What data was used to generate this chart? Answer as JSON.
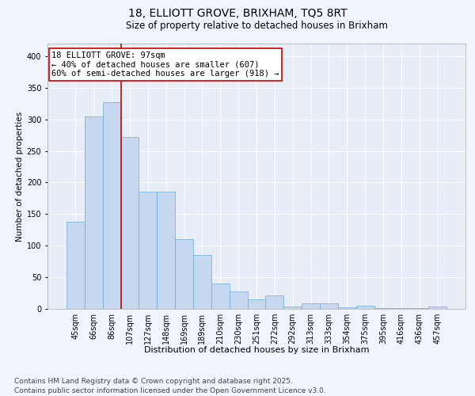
{
  "title1": "18, ELLIOTT GROVE, BRIXHAM, TQ5 8RT",
  "title2": "Size of property relative to detached houses in Brixham",
  "xlabel": "Distribution of detached houses by size in Brixham",
  "ylabel": "Number of detached properties",
  "categories": [
    "45sqm",
    "66sqm",
    "86sqm",
    "107sqm",
    "127sqm",
    "148sqm",
    "169sqm",
    "189sqm",
    "210sqm",
    "230sqm",
    "251sqm",
    "272sqm",
    "292sqm",
    "313sqm",
    "333sqm",
    "354sqm",
    "375sqm",
    "395sqm",
    "416sqm",
    "436sqm",
    "457sqm"
  ],
  "values": [
    138,
    305,
    327,
    272,
    186,
    186,
    110,
    85,
    40,
    27,
    15,
    21,
    4,
    9,
    9,
    3,
    5,
    1,
    1,
    1,
    4
  ],
  "bar_color": "#c5d8f0",
  "bar_edge_color": "#6aaad4",
  "vline_x": 2.5,
  "vline_color": "#cc0000",
  "annotation_text": "18 ELLIOTT GROVE: 97sqm\n← 40% of detached houses are smaller (607)\n60% of semi-detached houses are larger (918) →",
  "annotation_box_color": "#ffffff",
  "annotation_box_edge": "#cc0000",
  "ylim": [
    0,
    420
  ],
  "yticks": [
    0,
    50,
    100,
    150,
    200,
    250,
    300,
    350,
    400
  ],
  "background_color": "#e8eef8",
  "grid_color": "#ffffff",
  "fig_background": "#f0f4fc",
  "footer1": "Contains HM Land Registry data © Crown copyright and database right 2025.",
  "footer2": "Contains public sector information licensed under the Open Government Licence v3.0.",
  "title1_fontsize": 10,
  "title2_fontsize": 8.5,
  "xlabel_fontsize": 8,
  "ylabel_fontsize": 7.5,
  "tick_fontsize": 7,
  "footer_fontsize": 6.5,
  "annot_fontsize": 7.5
}
